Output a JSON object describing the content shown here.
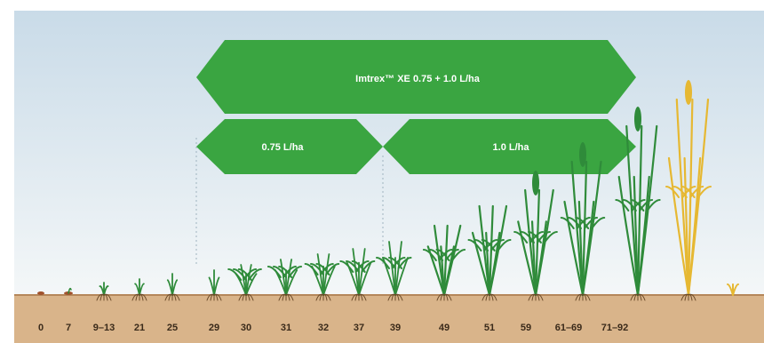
{
  "banners": {
    "top_label": "Imtrex™ XE 0.75 + 1.0 L/ha",
    "left_label": "0.75 L/ha",
    "right_label": "1.0 L/ha"
  },
  "colors": {
    "banner_green": "#3aa541",
    "sky_top": "#c9dbe8",
    "sky_bottom": "#f4f7f8",
    "soil": "#d9b48a",
    "soil_line": "#b5875a",
    "plant_green": "#2f8b3a",
    "plant_ripe": "#e6b832"
  },
  "growth_stages": [
    "0",
    "7",
    "9–13",
    "21",
    "25",
    "29",
    "30",
    "31",
    "32",
    "37",
    "39",
    "49",
    "51",
    "59",
    "61–69",
    "71–92"
  ]
}
